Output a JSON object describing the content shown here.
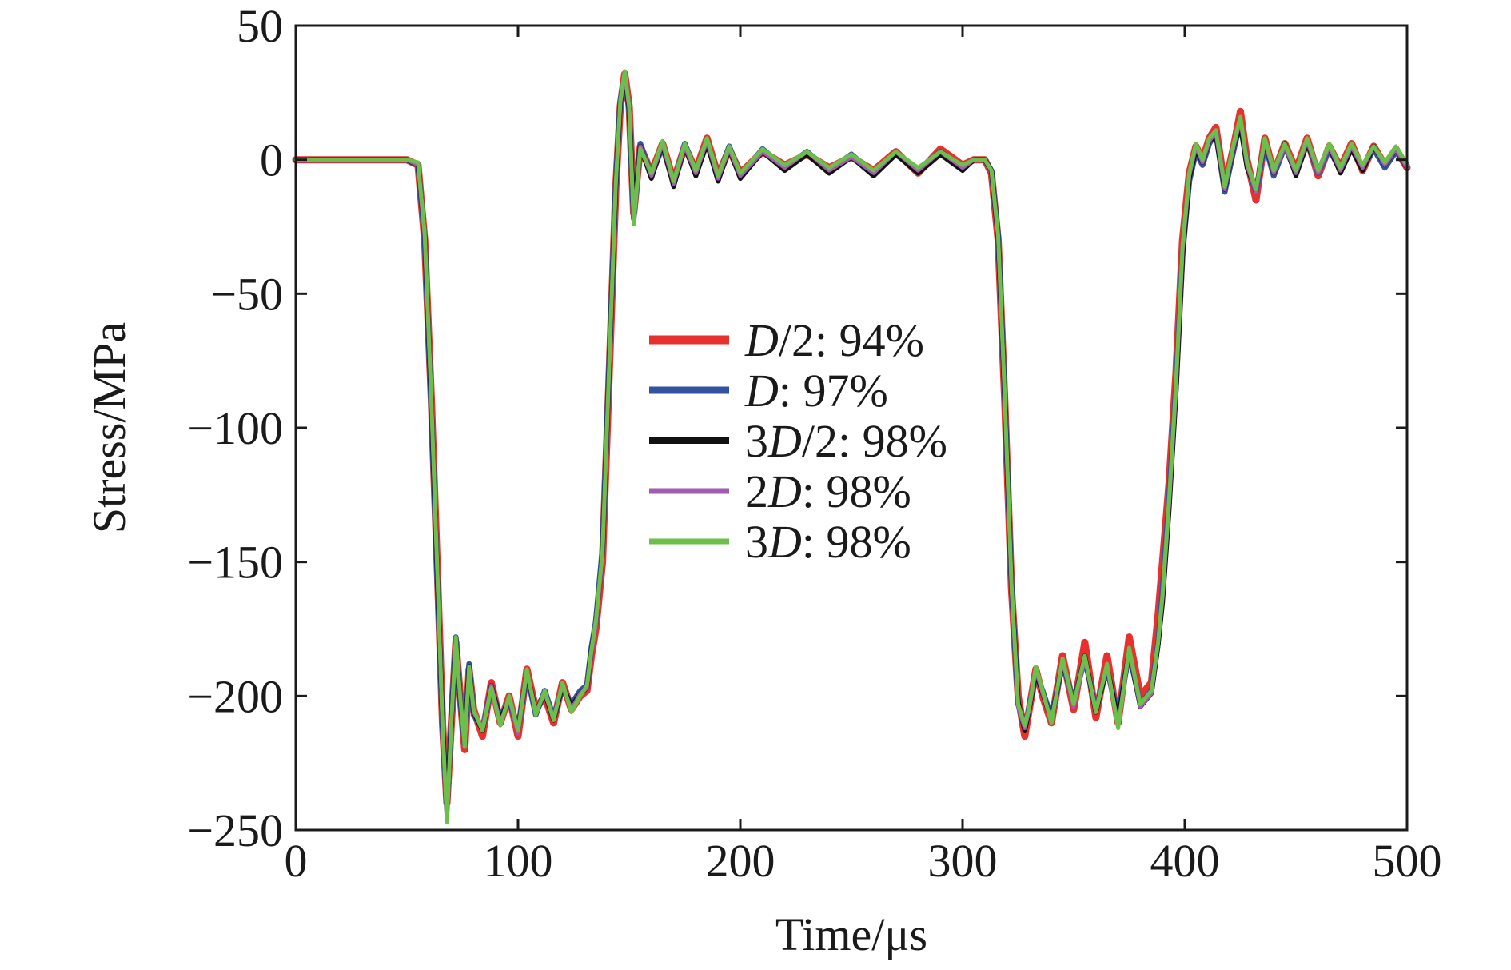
{
  "chart_data": {
    "type": "line",
    "title": "",
    "xlabel": "Time/μs",
    "ylabel": "Stress/MPa",
    "xlim": [
      0,
      500
    ],
    "ylim": [
      -250,
      50
    ],
    "xticks": [
      0,
      100,
      200,
      300,
      400,
      500
    ],
    "yticks": [
      50,
      0,
      -50,
      -100,
      -150,
      -200,
      -250
    ],
    "xtick_labels": [
      "0",
      "100",
      "200",
      "300",
      "400",
      "500"
    ],
    "ytick_labels": [
      "50",
      "0",
      "−50",
      "−100",
      "−150",
      "−200",
      "−250"
    ],
    "grid": false,
    "legend_position": "center",
    "series": [
      {
        "name": "D/2: 94%",
        "legend": {
          "pre": "",
          "it": "D",
          "post": "/2: 94%"
        },
        "color": "#e8312e",
        "width": 9,
        "x": [
          0,
          50,
          55,
          58,
          61,
          64,
          66,
          68,
          70,
          72,
          74,
          76,
          78,
          80,
          84,
          88,
          92,
          96,
          100,
          104,
          108,
          112,
          116,
          120,
          124,
          128,
          131,
          133,
          135,
          138,
          141,
          144,
          146,
          148,
          150,
          152,
          155,
          160,
          165,
          170,
          175,
          180,
          185,
          190,
          195,
          200,
          210,
          220,
          230,
          240,
          250,
          260,
          270,
          280,
          290,
          300,
          305,
          310,
          313,
          316,
          319,
          322,
          325,
          328,
          330,
          333,
          336,
          340,
          345,
          350,
          355,
          360,
          365,
          370,
          375,
          380,
          385,
          388,
          390,
          393,
          396,
          399,
          402,
          405,
          408,
          411,
          414,
          418,
          422,
          425,
          428,
          432,
          436,
          440,
          445,
          450,
          455,
          460,
          465,
          470,
          475,
          480,
          485,
          490,
          495,
          500
        ],
        "y": [
          0,
          0,
          -2,
          -30,
          -90,
          -160,
          -210,
          -240,
          -210,
          -180,
          -200,
          -220,
          -190,
          -205,
          -215,
          -195,
          -210,
          -200,
          -215,
          -190,
          -205,
          -200,
          -210,
          -195,
          -205,
          -200,
          -198,
          -185,
          -175,
          -150,
          -80,
          -10,
          20,
          32,
          20,
          -20,
          5,
          -5,
          6,
          -8,
          5,
          -4,
          8,
          -6,
          4,
          -5,
          3,
          -2,
          2,
          -3,
          1,
          -4,
          3,
          -5,
          4,
          -2,
          0,
          0,
          -5,
          -30,
          -90,
          -160,
          -200,
          -215,
          -205,
          -190,
          -200,
          -210,
          -185,
          -205,
          -180,
          -208,
          -185,
          -210,
          -178,
          -200,
          -195,
          -170,
          -150,
          -120,
          -80,
          -30,
          -5,
          5,
          0,
          8,
          12,
          -10,
          5,
          18,
          0,
          -15,
          8,
          -5,
          6,
          -4,
          8,
          -6,
          5,
          -3,
          6,
          -4,
          5,
          -2,
          4,
          -3
        ]
      },
      {
        "name": "D: 97%",
        "legend": {
          "pre": "",
          "it": "D",
          "post": ": 97%"
        },
        "color": "#3352a0",
        "width": 7,
        "x": [
          0,
          50,
          55,
          58,
          61,
          64,
          66,
          68,
          70,
          72,
          74,
          76,
          78,
          80,
          84,
          88,
          92,
          96,
          100,
          104,
          108,
          112,
          116,
          120,
          124,
          128,
          131,
          133,
          135,
          138,
          141,
          144,
          146,
          148,
          150,
          152,
          155,
          160,
          165,
          170,
          175,
          180,
          185,
          190,
          195,
          200,
          210,
          220,
          230,
          240,
          250,
          260,
          270,
          280,
          290,
          300,
          305,
          310,
          313,
          316,
          319,
          322,
          325,
          328,
          330,
          333,
          336,
          340,
          345,
          350,
          355,
          360,
          365,
          370,
          375,
          380,
          385,
          388,
          390,
          393,
          396,
          399,
          402,
          405,
          408,
          411,
          414,
          418,
          422,
          425,
          428,
          432,
          436,
          440,
          445,
          450,
          455,
          460,
          465,
          470,
          475,
          480,
          485,
          490,
          495,
          500
        ],
        "y": [
          0,
          0,
          -2,
          -30,
          -95,
          -165,
          -212,
          -242,
          -208,
          -178,
          -202,
          -218,
          -188,
          -207,
          -212,
          -197,
          -208,
          -202,
          -212,
          -192,
          -207,
          -198,
          -208,
          -197,
          -203,
          -198,
          -196,
          -182,
          -172,
          -145,
          -75,
          -8,
          22,
          31,
          18,
          -22,
          6,
          -6,
          5,
          -9,
          6,
          -5,
          7,
          -7,
          5,
          -6,
          4,
          -3,
          3,
          -4,
          2,
          -5,
          2,
          -4,
          3,
          -3,
          0,
          0,
          -4,
          -28,
          -88,
          -158,
          -203,
          -212,
          -204,
          -192,
          -198,
          -208,
          -188,
          -202,
          -186,
          -205,
          -190,
          -207,
          -184,
          -203,
          -198,
          -180,
          -160,
          -125,
          -85,
          -35,
          -8,
          3,
          -2,
          6,
          10,
          -12,
          4,
          14,
          -2,
          -12,
          6,
          -6,
          5,
          -5,
          7,
          -5,
          4,
          -4,
          5,
          -3,
          4,
          -3,
          3,
          -2
        ]
      },
      {
        "name": "3D/2: 98%",
        "legend": {
          "pre": "3",
          "it": "D",
          "post": "/2: 98%"
        },
        "color": "#111111",
        "width": 6,
        "x": [
          0,
          50,
          55,
          58,
          61,
          64,
          66,
          68,
          70,
          72,
          74,
          76,
          78,
          80,
          84,
          88,
          92,
          96,
          100,
          104,
          108,
          112,
          116,
          120,
          124,
          128,
          131,
          133,
          135,
          138,
          141,
          144,
          146,
          148,
          150,
          152,
          155,
          160,
          165,
          170,
          175,
          180,
          185,
          190,
          195,
          200,
          210,
          220,
          230,
          240,
          250,
          260,
          270,
          280,
          290,
          300,
          305,
          310,
          313,
          316,
          319,
          322,
          325,
          328,
          330,
          333,
          336,
          340,
          345,
          350,
          355,
          360,
          365,
          370,
          375,
          380,
          385,
          388,
          390,
          393,
          396,
          399,
          402,
          405,
          408,
          411,
          414,
          418,
          422,
          425,
          428,
          432,
          436,
          440,
          445,
          450,
          455,
          460,
          465,
          470,
          475,
          480,
          485,
          490,
          495,
          500
        ],
        "y": [
          0,
          0,
          -2,
          -28,
          -92,
          -163,
          -210,
          -244,
          -209,
          -179,
          -201,
          -217,
          -189,
          -206,
          -213,
          -196,
          -209,
          -201,
          -213,
          -191,
          -206,
          -199,
          -209,
          -196,
          -204,
          -199,
          -197,
          -183,
          -173,
          -147,
          -77,
          -9,
          21,
          31,
          19,
          -21,
          5,
          -7,
          6,
          -10,
          5,
          -6,
          6,
          -8,
          4,
          -7,
          3,
          -4,
          2,
          -5,
          1,
          -6,
          2,
          -5,
          2,
          -4,
          0,
          0,
          -4,
          -29,
          -89,
          -159,
          -202,
          -213,
          -205,
          -191,
          -199,
          -209,
          -187,
          -203,
          -185,
          -206,
          -189,
          -209,
          -183,
          -204,
          -199,
          -181,
          -165,
          -130,
          -88,
          -36,
          -7,
          4,
          -1,
          7,
          9,
          -11,
          5,
          13,
          -3,
          -11,
          7,
          -5,
          6,
          -6,
          6,
          -4,
          5,
          -5,
          4,
          -4,
          5,
          -2,
          4,
          -3
        ]
      },
      {
        "name": "2D: 98%",
        "legend": {
          "pre": "2",
          "it": "D",
          "post": ": 98%"
        },
        "color": "#a15bb0",
        "width": 5,
        "x": [
          0,
          50,
          55,
          58,
          61,
          64,
          66,
          68,
          70,
          72,
          74,
          76,
          78,
          80,
          84,
          88,
          92,
          96,
          100,
          104,
          108,
          112,
          116,
          120,
          124,
          128,
          131,
          133,
          135,
          138,
          141,
          144,
          146,
          148,
          150,
          152,
          155,
          160,
          165,
          170,
          175,
          180,
          185,
          190,
          195,
          200,
          210,
          220,
          230,
          240,
          250,
          260,
          270,
          280,
          290,
          300,
          305,
          310,
          313,
          316,
          319,
          322,
          325,
          328,
          330,
          333,
          336,
          340,
          345,
          350,
          355,
          360,
          365,
          370,
          375,
          380,
          385,
          388,
          390,
          393,
          396,
          399,
          402,
          405,
          408,
          411,
          414,
          418,
          422,
          425,
          428,
          432,
          436,
          440,
          445,
          450,
          455,
          460,
          465,
          470,
          475,
          480,
          485,
          490,
          495,
          500
        ],
        "y": [
          0,
          0,
          -2,
          -29,
          -91,
          -162,
          -211,
          -246,
          -210,
          -180,
          -200,
          -218,
          -190,
          -206,
          -212,
          -196,
          -210,
          -201,
          -214,
          -191,
          -206,
          -199,
          -208,
          -196,
          -205,
          -199,
          -197,
          -184,
          -174,
          -148,
          -78,
          -9,
          21,
          32,
          19,
          -23,
          5,
          -6,
          6,
          -9,
          5,
          -5,
          7,
          -7,
          4,
          -6,
          3,
          -3,
          3,
          -4,
          1,
          -5,
          3,
          -4,
          3,
          -3,
          0,
          0,
          -4,
          -29,
          -89,
          -160,
          -204,
          -212,
          -205,
          -190,
          -199,
          -209,
          -187,
          -204,
          -186,
          -205,
          -189,
          -211,
          -183,
          -204,
          -199,
          -180,
          -163,
          -128,
          -86,
          -34,
          -6,
          5,
          -1,
          7,
          10,
          -11,
          5,
          15,
          -2,
          -12,
          7,
          -5,
          5,
          -5,
          7,
          -5,
          5,
          -4,
          5,
          -3,
          5,
          -2,
          4,
          -3
        ]
      },
      {
        "name": "3D: 98%",
        "legend": {
          "pre": "3",
          "it": "D",
          "post": ": 98%"
        },
        "color": "#6cbf4b",
        "width": 5,
        "x": [
          0,
          50,
          55,
          58,
          61,
          64,
          66,
          68,
          70,
          72,
          74,
          76,
          78,
          80,
          84,
          88,
          92,
          96,
          100,
          104,
          108,
          112,
          116,
          120,
          124,
          128,
          131,
          133,
          135,
          138,
          141,
          144,
          146,
          148,
          150,
          152,
          155,
          160,
          165,
          170,
          175,
          180,
          185,
          190,
          195,
          200,
          210,
          220,
          230,
          240,
          250,
          260,
          270,
          280,
          290,
          300,
          305,
          310,
          313,
          316,
          319,
          322,
          325,
          328,
          330,
          333,
          336,
          340,
          345,
          350,
          355,
          360,
          365,
          370,
          375,
          380,
          385,
          388,
          390,
          393,
          396,
          399,
          402,
          405,
          408,
          411,
          414,
          418,
          422,
          425,
          428,
          432,
          436,
          440,
          445,
          450,
          455,
          460,
          465,
          470,
          475,
          480,
          485,
          490,
          495,
          500
        ],
        "y": [
          0,
          0,
          -1,
          -27,
          -90,
          -161,
          -211,
          -247,
          -209,
          -178,
          -201,
          -219,
          -189,
          -205,
          -213,
          -197,
          -211,
          -200,
          -213,
          -190,
          -207,
          -198,
          -209,
          -195,
          -206,
          -200,
          -196,
          -183,
          -172,
          -146,
          -76,
          -8,
          22,
          33,
          20,
          -24,
          4,
          -5,
          7,
          -8,
          6,
          -4,
          8,
          -6,
          5,
          -5,
          4,
          -2,
          3,
          -3,
          2,
          -4,
          3,
          -3,
          3,
          -2,
          0,
          0,
          -4,
          -28,
          -88,
          -158,
          -203,
          -211,
          -204,
          -189,
          -198,
          -210,
          -186,
          -203,
          -185,
          -206,
          -188,
          -212,
          -182,
          -203,
          -198,
          -180,
          -162,
          -126,
          -84,
          -32,
          -5,
          6,
          0,
          8,
          11,
          -10,
          6,
          16,
          -1,
          -11,
          8,
          -4,
          6,
          -4,
          8,
          -4,
          6,
          -3,
          6,
          -2,
          5,
          -1,
          5,
          -2
        ]
      }
    ]
  }
}
